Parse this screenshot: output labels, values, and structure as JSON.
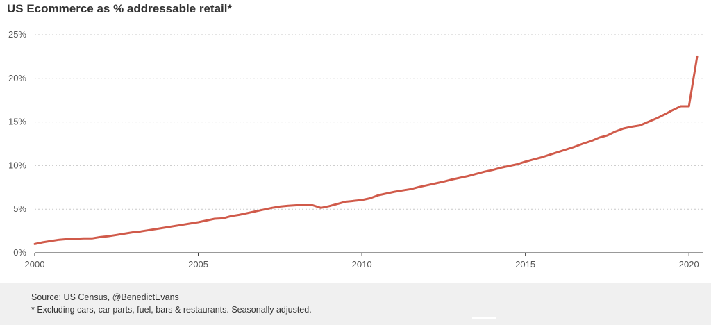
{
  "chart_data": {
    "type": "line",
    "title": "US Ecommerce as % addressable retail*",
    "xlabel": "",
    "ylabel": "",
    "xlim": [
      2000,
      2020.25
    ],
    "ylim": [
      0,
      25
    ],
    "y_ticks": [
      0,
      5,
      10,
      15,
      20,
      25
    ],
    "y_tick_labels": [
      "0%",
      "5%",
      "10%",
      "15%",
      "20%",
      "25%"
    ],
    "x_ticks": [
      2000,
      2005,
      2010,
      2015,
      2020
    ],
    "x_tick_labels": [
      "2000",
      "2005",
      "2010",
      "2015",
      "2020"
    ],
    "grid": "horizontal-dotted",
    "line_color": "#d05a4a",
    "series": [
      {
        "name": "",
        "x": [
          2000.0,
          2000.25,
          2000.5,
          2000.75,
          2001.0,
          2001.25,
          2001.5,
          2001.75,
          2002.0,
          2002.25,
          2002.5,
          2002.75,
          2003.0,
          2003.25,
          2003.5,
          2003.75,
          2004.0,
          2004.25,
          2004.5,
          2004.75,
          2005.0,
          2005.25,
          2005.5,
          2005.75,
          2006.0,
          2006.25,
          2006.5,
          2006.75,
          2007.0,
          2007.25,
          2007.5,
          2007.75,
          2008.0,
          2008.25,
          2008.5,
          2008.75,
          2009.0,
          2009.25,
          2009.5,
          2009.75,
          2010.0,
          2010.25,
          2010.5,
          2010.75,
          2011.0,
          2011.25,
          2011.5,
          2011.75,
          2012.0,
          2012.25,
          2012.5,
          2012.75,
          2013.0,
          2013.25,
          2013.5,
          2013.75,
          2014.0,
          2014.25,
          2014.5,
          2014.75,
          2015.0,
          2015.25,
          2015.5,
          2015.75,
          2016.0,
          2016.25,
          2016.5,
          2016.75,
          2017.0,
          2017.25,
          2017.5,
          2017.75,
          2018.0,
          2018.25,
          2018.5,
          2018.75,
          2019.0,
          2019.25,
          2019.5,
          2019.75,
          2020.0,
          2020.25
        ],
        "values": [
          1.0,
          1.2,
          1.35,
          1.5,
          1.58,
          1.62,
          1.65,
          1.65,
          1.8,
          1.9,
          2.05,
          2.2,
          2.35,
          2.45,
          2.6,
          2.75,
          2.9,
          3.05,
          3.2,
          3.35,
          3.5,
          3.7,
          3.9,
          3.95,
          4.2,
          4.35,
          4.55,
          4.75,
          4.95,
          5.15,
          5.3,
          5.4,
          5.45,
          5.45,
          5.45,
          5.15,
          5.35,
          5.6,
          5.85,
          5.95,
          6.05,
          6.25,
          6.6,
          6.8,
          7.0,
          7.15,
          7.3,
          7.55,
          7.75,
          7.95,
          8.15,
          8.4,
          8.6,
          8.8,
          9.05,
          9.3,
          9.5,
          9.75,
          9.95,
          10.15,
          10.45,
          10.7,
          10.95,
          11.25,
          11.55,
          11.85,
          12.15,
          12.5,
          12.8,
          13.2,
          13.45,
          13.9,
          14.25,
          14.45,
          14.6,
          15.0,
          15.4,
          15.85,
          16.35,
          16.8,
          16.8,
          22.5
        ]
      }
    ]
  },
  "footer": {
    "source": "Source: US Census, @BenedictEvans",
    "note": "* Excluding cars, car parts, fuel, bars & restaurants. Seasonally adjusted."
  }
}
